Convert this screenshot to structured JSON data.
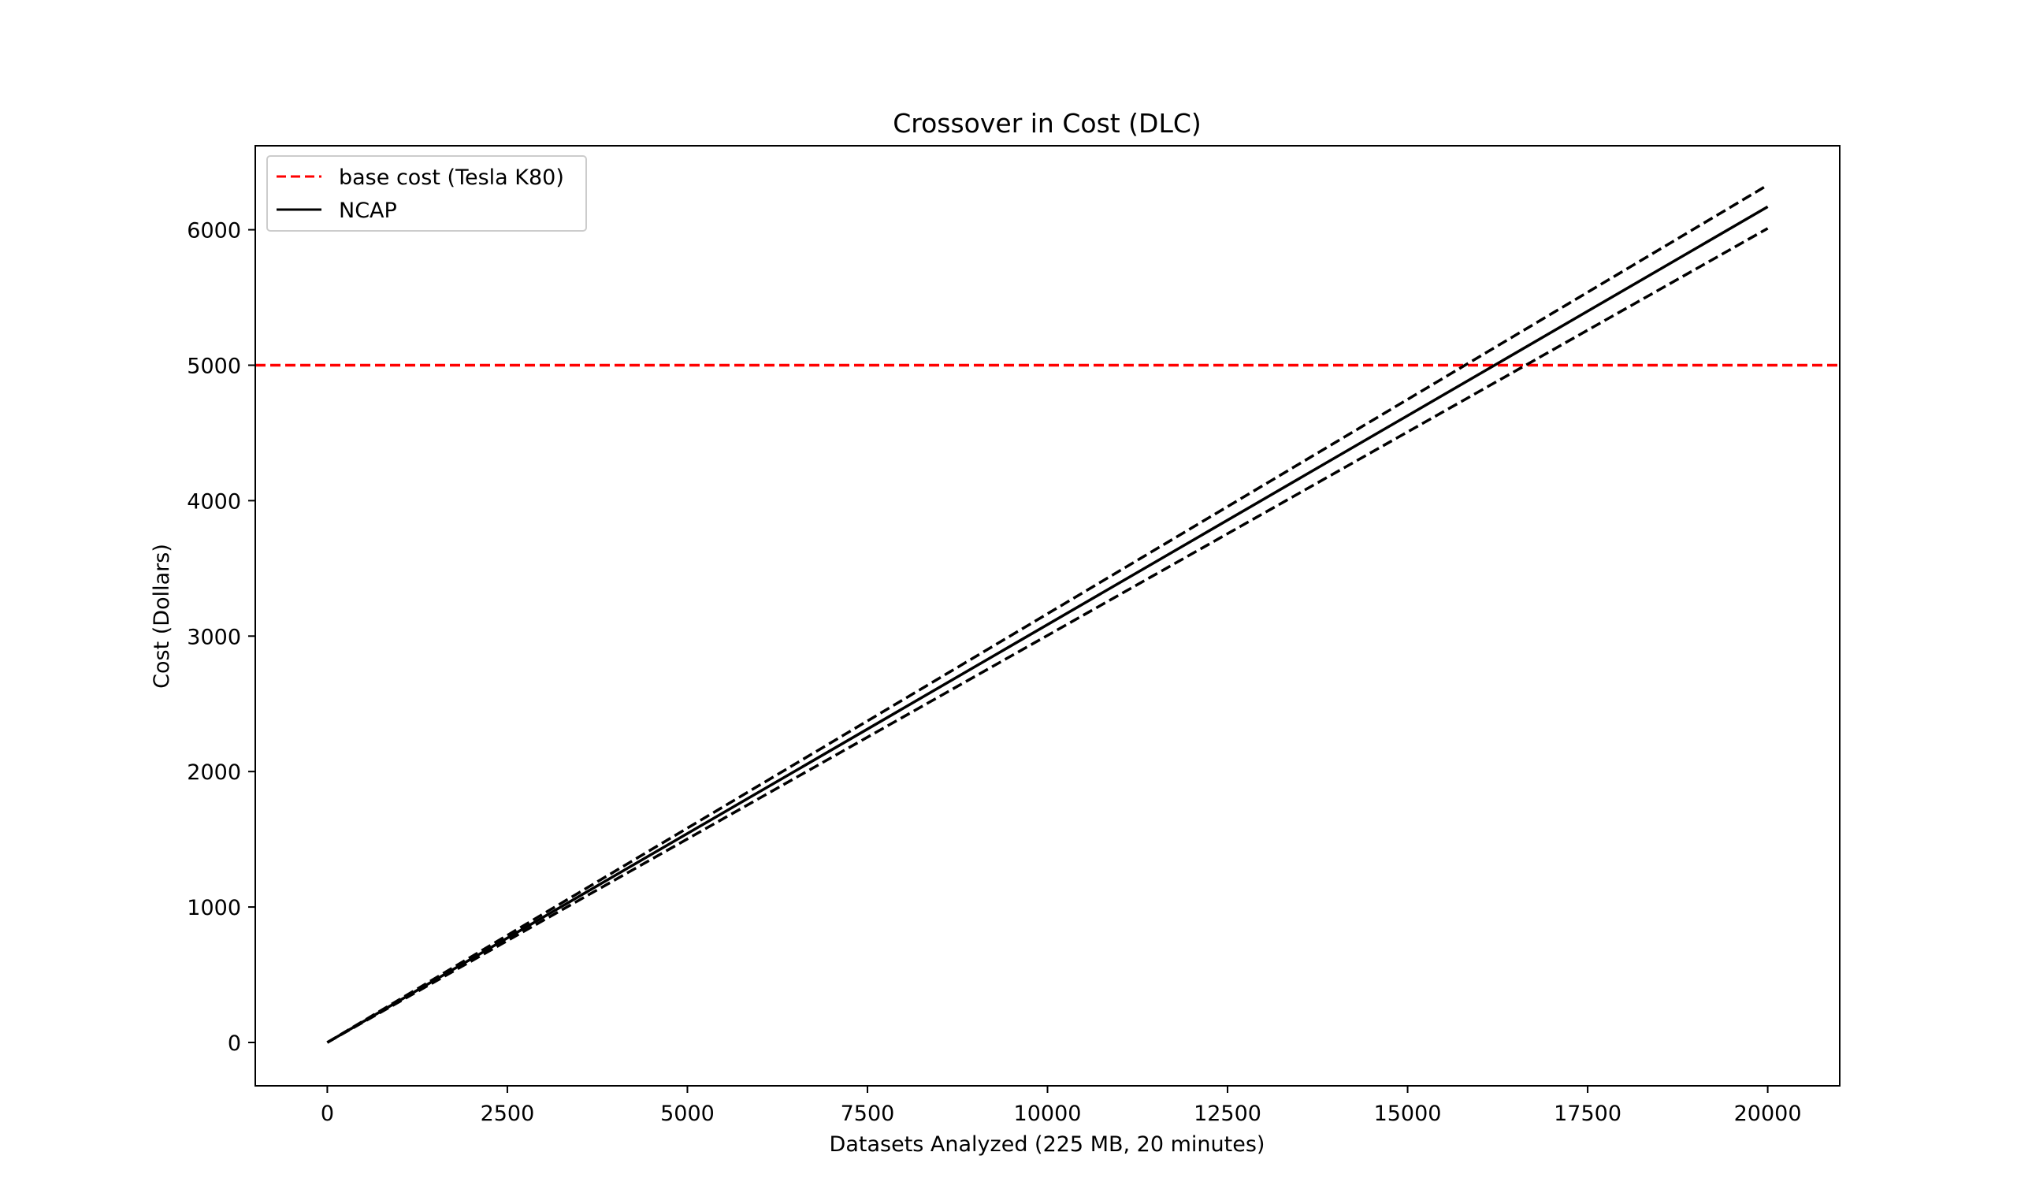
{
  "chart_data": {
    "type": "line",
    "title": "Crossover in Cost (DLC)",
    "xlabel": "Datasets Analyzed (225 MB, 20 minutes)",
    "ylabel": "Cost (Dollars)",
    "xlim": [
      -1000,
      21000
    ],
    "ylim": [
      -320,
      6620
    ],
    "xticks": [
      0,
      2500,
      5000,
      7500,
      10000,
      12500,
      15000,
      17500,
      20000
    ],
    "yticks": [
      0,
      1000,
      2000,
      3000,
      4000,
      5000,
      6000
    ],
    "grid": false,
    "legend_position": "upper-left",
    "series": [
      {
        "name": "base cost (Tesla K80)",
        "kind": "hline",
        "y": 5000,
        "style": "dashed",
        "color": "#ff0000",
        "in_legend": true
      },
      {
        "name": "NCAP",
        "x": [
          0,
          20000
        ],
        "y": [
          0,
          6170
        ],
        "style": "solid",
        "color": "#000000",
        "in_legend": true
      },
      {
        "x": [
          0,
          20000
        ],
        "y": [
          0,
          6330
        ],
        "style": "dashed",
        "color": "#000000",
        "in_legend": false
      },
      {
        "x": [
          0,
          20000
        ],
        "y": [
          0,
          6010
        ],
        "style": "dashed",
        "color": "#000000",
        "in_legend": false
      }
    ]
  }
}
